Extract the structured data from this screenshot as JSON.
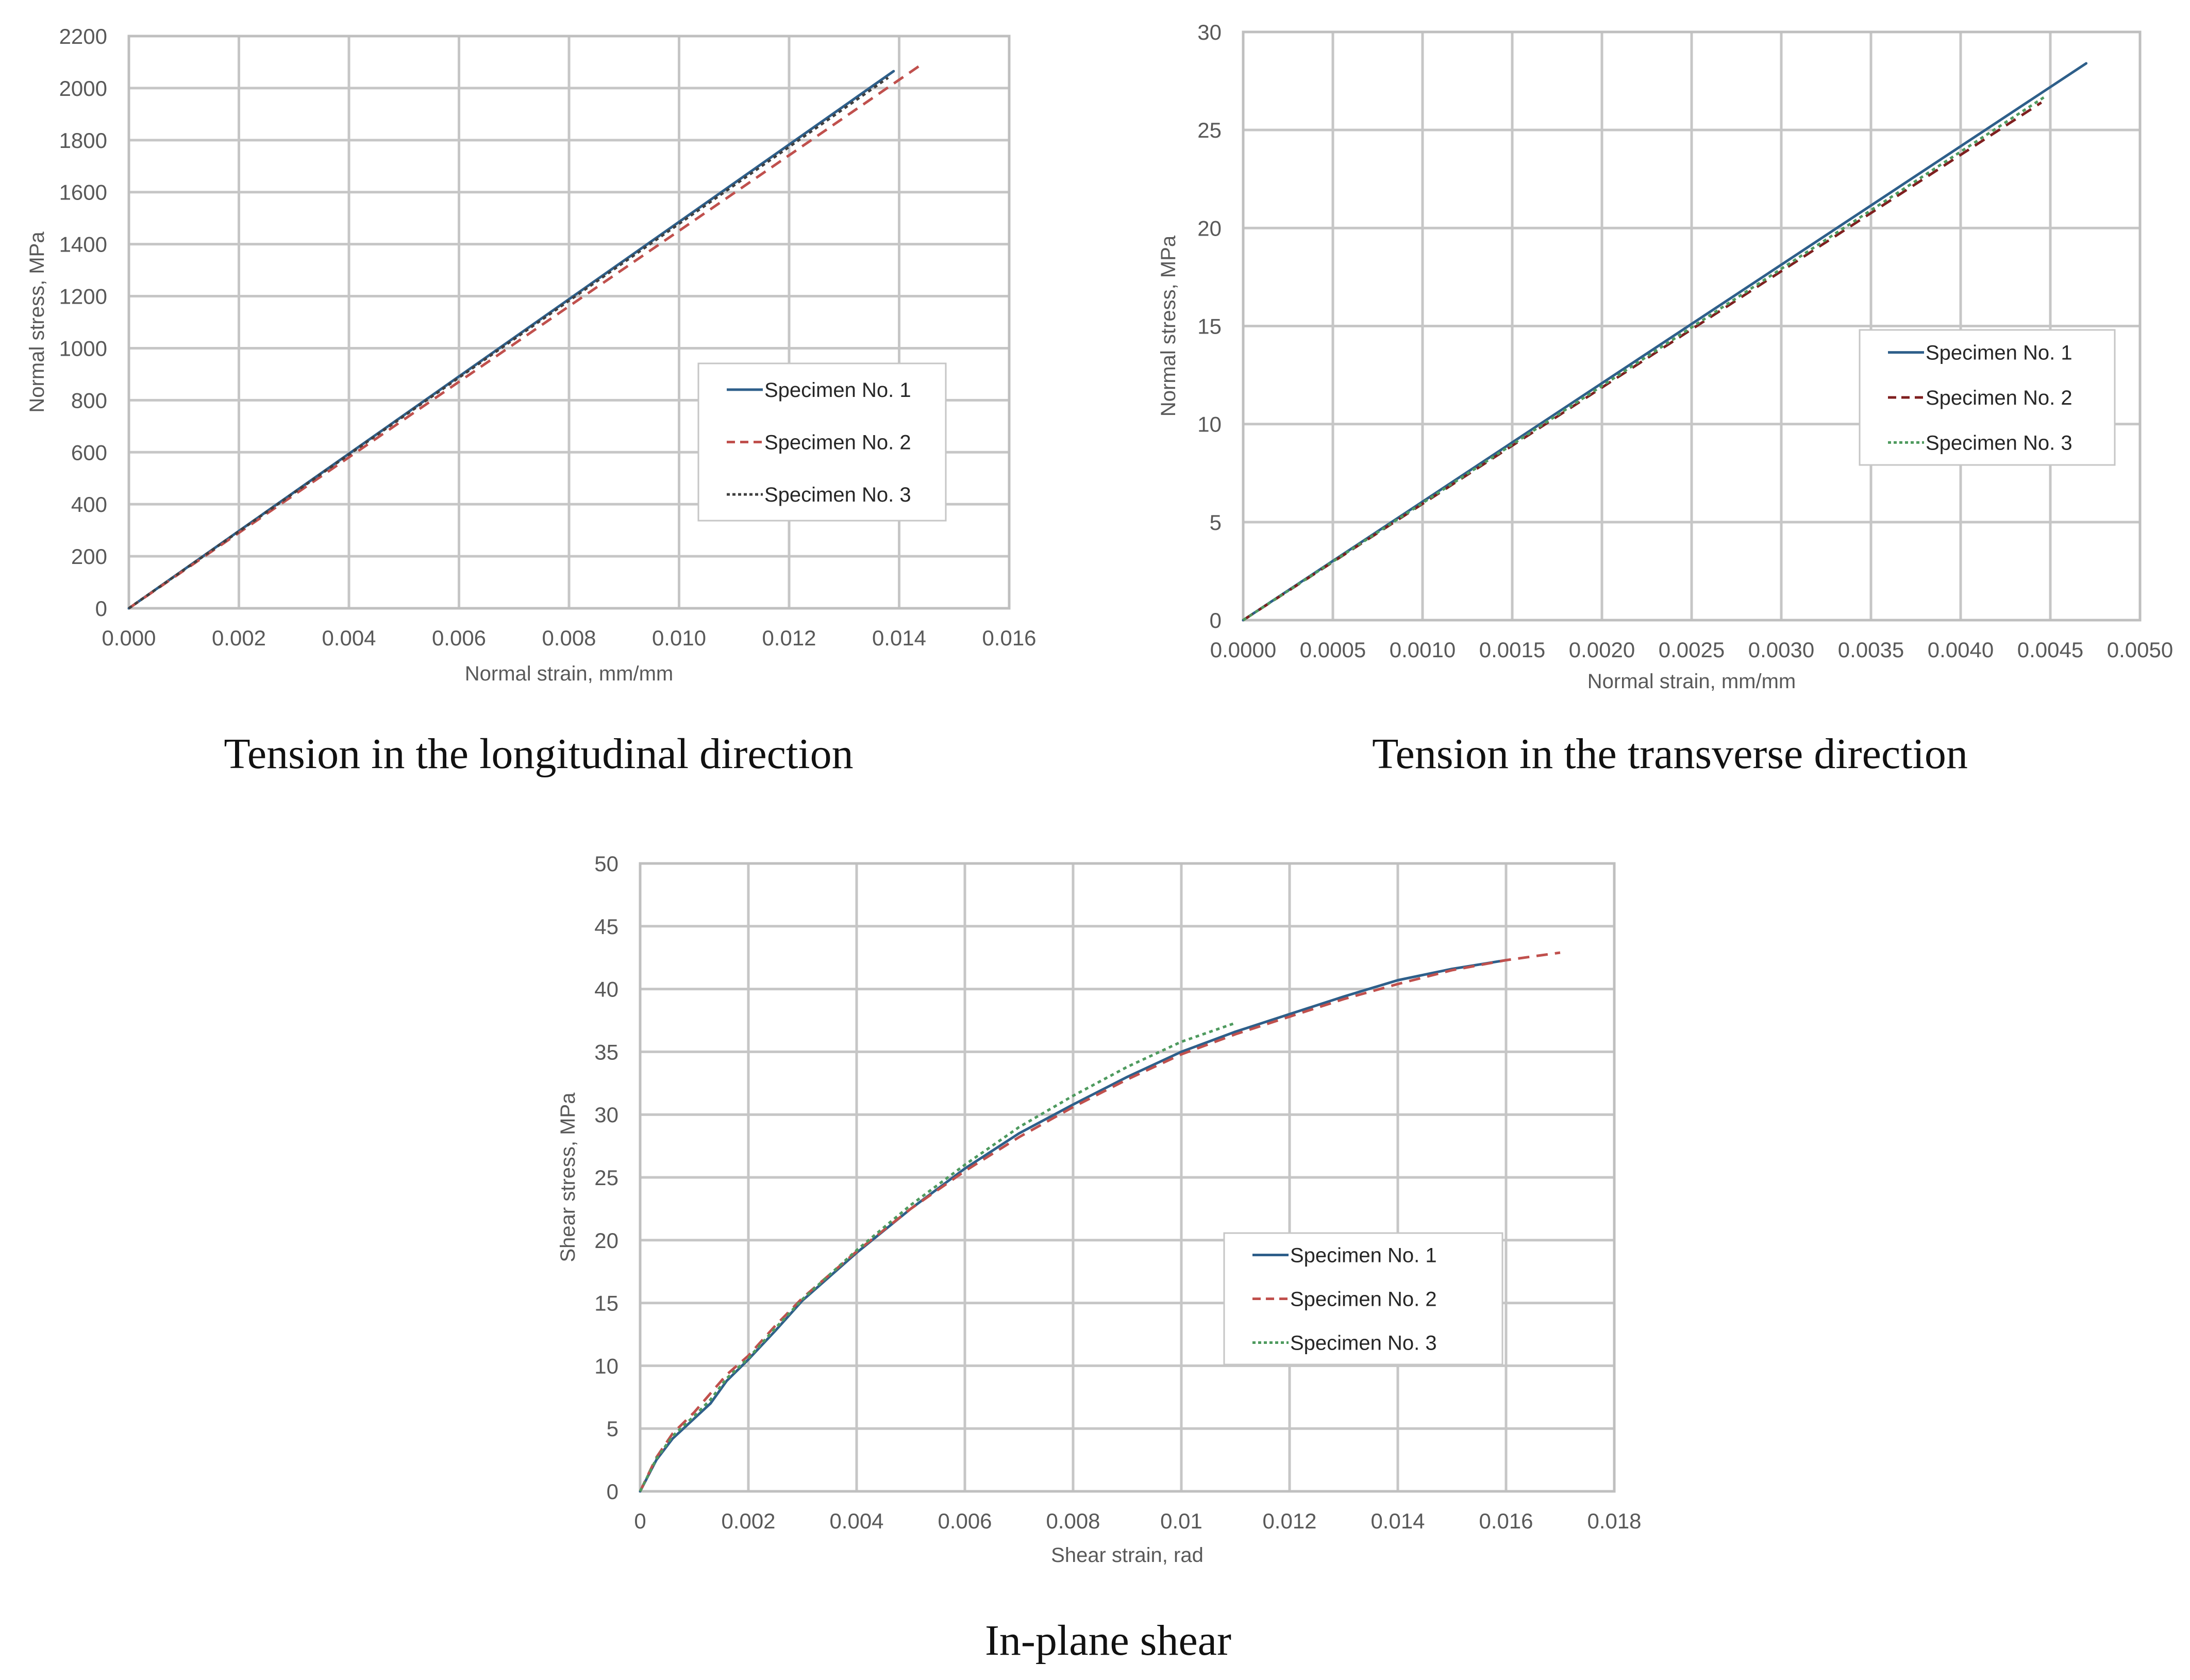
{
  "chart_data": [
    {
      "type": "line",
      "caption": "Tension in the longitudinal direction",
      "xlabel": "Normal strain, mm/mm",
      "ylabel": "Normal stress, MPa",
      "xlim": [
        0,
        0.016
      ],
      "ylim": [
        0,
        2200
      ],
      "xticks": [
        "0.000",
        "0.002",
        "0.004",
        "0.006",
        "0.008",
        "0.010",
        "0.012",
        "0.014",
        "0.016"
      ],
      "yticks": [
        "0",
        "200",
        "400",
        "600",
        "800",
        "1000",
        "1200",
        "1400",
        "1600",
        "1800",
        "2000",
        "2200"
      ],
      "grid": true,
      "legend_position": "center-right",
      "series": [
        {
          "name": "Specimen No. 1",
          "color": "#2e5f8a",
          "dash": "solid",
          "x": [
            0,
            0.0139
          ],
          "y": [
            0,
            2065
          ]
        },
        {
          "name": "Specimen No. 2",
          "color": "#c0504d",
          "dash": "dashed",
          "x": [
            0,
            0.0144
          ],
          "y": [
            0,
            2090
          ]
        },
        {
          "name": "Specimen No. 3",
          "color": "#404040",
          "dash": "dotted",
          "x": [
            0,
            0.0138
          ],
          "y": [
            0,
            2040
          ]
        }
      ]
    },
    {
      "type": "line",
      "caption": "Tension in the transverse direction",
      "xlabel": "Normal strain, mm/mm",
      "ylabel": "Normal stress, MPa",
      "xlim": [
        0,
        0.005
      ],
      "ylim": [
        0,
        30
      ],
      "xticks": [
        "0.0000",
        "0.0005",
        "0.0010",
        "0.0015",
        "0.0020",
        "0.0025",
        "0.0030",
        "0.0035",
        "0.0040",
        "0.0045",
        "0.0050"
      ],
      "yticks": [
        "0",
        "5",
        "10",
        "15",
        "20",
        "25",
        "30"
      ],
      "grid": true,
      "legend_position": "center-right",
      "series": [
        {
          "name": "Specimen No. 1",
          "color": "#2e5f8a",
          "dash": "solid",
          "x": [
            0,
            0.0047
          ],
          "y": [
            0,
            28.4
          ]
        },
        {
          "name": "Specimen No. 2",
          "color": "#7f1f1f",
          "dash": "dashed",
          "x": [
            0,
            0.00445
          ],
          "y": [
            0,
            26.4
          ]
        },
        {
          "name": "Specimen No. 3",
          "color": "#4e9a5e",
          "dash": "dotted",
          "x": [
            0,
            0.00447
          ],
          "y": [
            0,
            26.7
          ]
        }
      ]
    },
    {
      "type": "line",
      "caption": "In-plane shear",
      "xlabel": "Shear strain, rad",
      "ylabel": "Shear stress, MPa",
      "xlim": [
        0,
        0.018
      ],
      "ylim": [
        0,
        50
      ],
      "xticks": [
        "0",
        "0.002",
        "0.004",
        "0.006",
        "0.008",
        "0.01",
        "0.012",
        "0.014",
        "0.016",
        "0.018"
      ],
      "yticks": [
        "0",
        "5",
        "10",
        "15",
        "20",
        "25",
        "30",
        "35",
        "40",
        "45",
        "50"
      ],
      "grid": true,
      "legend_position": "center-right",
      "series": [
        {
          "name": "Specimen No. 1",
          "color": "#2e5f8a",
          "dash": "solid",
          "x": [
            0,
            0.0003,
            0.0006,
            0.001,
            0.0013,
            0.0016,
            0.002,
            0.0025,
            0.003,
            0.004,
            0.005,
            0.006,
            0.007,
            0.008,
            0.009,
            0.01,
            0.011,
            0.012,
            0.013,
            0.014,
            0.015,
            0.016
          ],
          "y": [
            0,
            2.5,
            4.2,
            5.8,
            7.0,
            8.8,
            10.5,
            12.8,
            15.2,
            19.0,
            22.5,
            25.7,
            28.5,
            30.8,
            33.0,
            35.0,
            36.6,
            38.0,
            39.4,
            40.7,
            41.6,
            42.3
          ]
        },
        {
          "name": "Specimen No. 2",
          "color": "#c0504d",
          "dash": "dashed",
          "x": [
            0,
            0.0003,
            0.0006,
            0.001,
            0.0013,
            0.0016,
            0.002,
            0.0025,
            0.003,
            0.004,
            0.005,
            0.006,
            0.007,
            0.008,
            0.009,
            0.01,
            0.011,
            0.012,
            0.013,
            0.014,
            0.015,
            0.016,
            0.017
          ],
          "y": [
            0,
            2.7,
            4.6,
            6.3,
            7.8,
            9.3,
            10.8,
            13.2,
            15.4,
            19.1,
            22.5,
            25.5,
            28.2,
            30.6,
            32.8,
            34.8,
            36.4,
            37.8,
            39.2,
            40.4,
            41.5,
            42.3,
            42.9
          ]
        },
        {
          "name": "Specimen No. 3",
          "color": "#4e9a5e",
          "dash": "dotted",
          "x": [
            0,
            0.0003,
            0.0006,
            0.001,
            0.0013,
            0.0016,
            0.002,
            0.0025,
            0.003,
            0.004,
            0.005,
            0.006,
            0.007,
            0.008,
            0.009,
            0.01,
            0.011
          ],
          "y": [
            0,
            2.6,
            4.4,
            6.0,
            7.3,
            9.0,
            10.6,
            13.0,
            15.3,
            19.2,
            22.8,
            26.0,
            29.0,
            31.5,
            33.8,
            35.8,
            37.3
          ]
        }
      ]
    }
  ]
}
